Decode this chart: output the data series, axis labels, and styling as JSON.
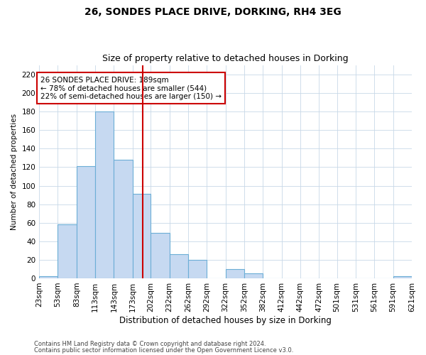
{
  "title1": "26, SONDES PLACE DRIVE, DORKING, RH4 3EG",
  "title2": "Size of property relative to detached houses in Dorking",
  "xlabel": "Distribution of detached houses by size in Dorking",
  "ylabel": "Number of detached properties",
  "bins": [
    23,
    53,
    83,
    113,
    143,
    173,
    202,
    232,
    262,
    292,
    322,
    352,
    382,
    412,
    442,
    472,
    501,
    531,
    561,
    591,
    621
  ],
  "counts": [
    2,
    58,
    121,
    180,
    128,
    91,
    49,
    26,
    20,
    0,
    10,
    5,
    0,
    0,
    0,
    0,
    0,
    0,
    0,
    2
  ],
  "bar_facecolor": "#c6d9f1",
  "bar_edgecolor": "#6baed6",
  "vline_x": 189,
  "vline_color": "#cc0000",
  "annotation_text": "26 SONDES PLACE DRIVE: 189sqm\n← 78% of detached houses are smaller (544)\n22% of semi-detached houses are larger (150) →",
  "annotation_box_edgecolor": "#cc0000",
  "annotation_fontsize": 7.5,
  "ylim": [
    0,
    230
  ],
  "yticks": [
    0,
    20,
    40,
    60,
    80,
    100,
    120,
    140,
    160,
    180,
    200,
    220
  ],
  "footer1": "Contains HM Land Registry data © Crown copyright and database right 2024.",
  "footer2": "Contains public sector information licensed under the Open Government Licence v3.0.",
  "bg_color": "#ffffff",
  "grid_color": "#c8d8e8",
  "title1_fontsize": 10,
  "title2_fontsize": 9,
  "xlabel_fontsize": 8.5,
  "ylabel_fontsize": 7.5,
  "xtick_fontsize": 6,
  "ytick_fontsize": 7.5,
  "footer_fontsize": 6
}
